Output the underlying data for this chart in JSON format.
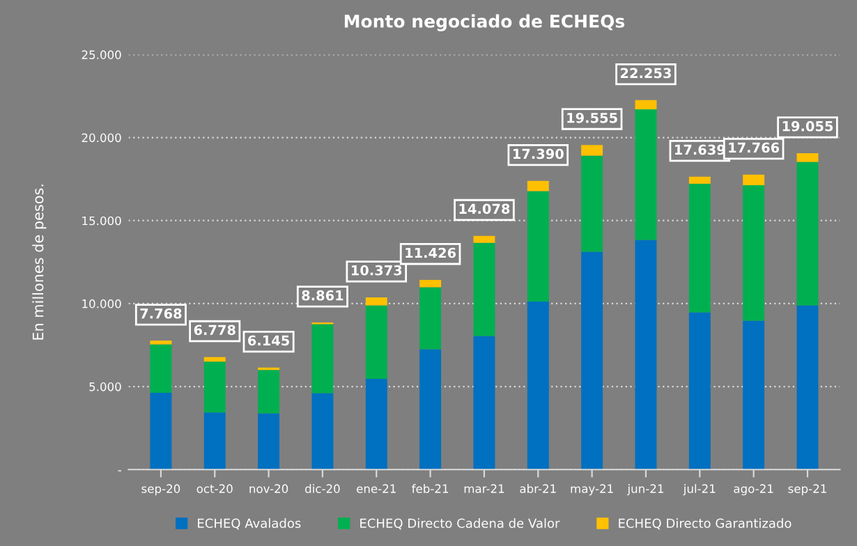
{
  "chart_data": {
    "type": "bar",
    "title": "Monto negociado de ECHEQs",
    "ylabel": "En millones de pesos.",
    "categories": [
      "sep-20",
      "oct-20",
      "nov-20",
      "dic-20",
      "ene-21",
      "feb-21",
      "mar-21",
      "abr-21",
      "may-21",
      "jun-21",
      "jul-21",
      "ago-21",
      "sep-21"
    ],
    "stacked": true,
    "series": [
      {
        "name": "ECHEQ Avalados",
        "color": "#0070c0",
        "values": [
          4630,
          3445,
          3385,
          4600,
          5460,
          7245,
          8050,
          10125,
          13125,
          13835,
          9470,
          8965,
          9890
        ]
      },
      {
        "name": "ECHEQ Directo Cadena de Valor",
        "color": "#00b050",
        "values": [
          2910,
          3055,
          2615,
          4160,
          4430,
          3740,
          5610,
          6650,
          5790,
          7870,
          7750,
          8165,
          8640
        ]
      },
      {
        "name": "ECHEQ Directo Garantizado",
        "color": "#ffc000",
        "values": [
          228,
          278,
          145,
          101,
          483,
          441,
          418,
          615,
          640,
          548,
          419,
          636,
          525
        ]
      }
    ],
    "totals": [
      "7.768",
      "6.778",
      "6.145",
      "8.861",
      "10.373",
      "11.426",
      "14.078",
      "17.390",
      "19.555",
      "22.253",
      "17.639",
      "17.766",
      "19.055"
    ],
    "ylim": [
      0,
      25000
    ],
    "yticks": [
      {
        "value": 0,
        "label": "-"
      },
      {
        "value": 5000,
        "label": "5.000"
      },
      {
        "value": 10000,
        "label": "10.000"
      },
      {
        "value": 15000,
        "label": "15.000"
      },
      {
        "value": 20000,
        "label": "20.000"
      },
      {
        "value": 25000,
        "label": "25.000"
      }
    ],
    "grid": "y",
    "legend": "bottom"
  }
}
